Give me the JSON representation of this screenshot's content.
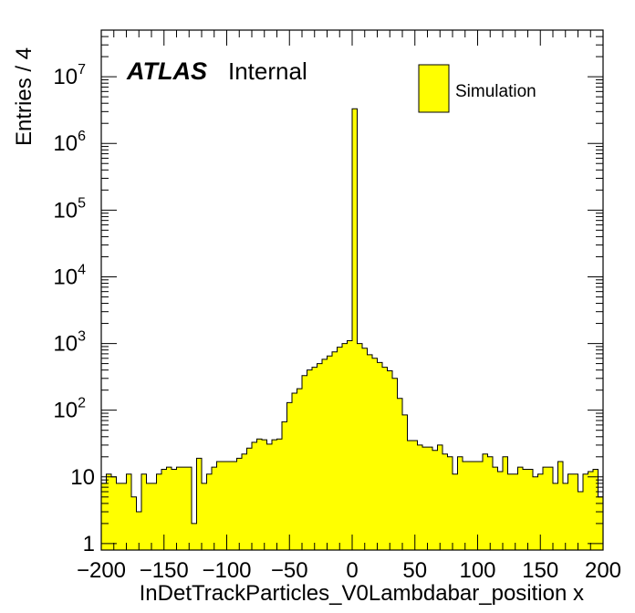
{
  "chart_data": {
    "type": "bar",
    "histogram": true,
    "log_y": true,
    "grid": false,
    "xlabel": "InDetTrackParticles_V0Lambdabar_position x",
    "ylabel": "Entries / 4",
    "xlim": [
      -200,
      200
    ],
    "ylim": [
      0.8,
      50000000
    ],
    "bin_width": 4,
    "x_ticks": [
      "−200",
      "−150",
      "−100",
      "−50",
      "0",
      "50",
      "100",
      "150",
      "200"
    ],
    "y_ticks": [
      {
        "base": "1",
        "exp": ""
      },
      {
        "base": "10",
        "exp": ""
      },
      {
        "base": "10",
        "exp": "2"
      },
      {
        "base": "10",
        "exp": "3"
      },
      {
        "base": "10",
        "exp": "4"
      },
      {
        "base": "10",
        "exp": "5"
      },
      {
        "base": "10",
        "exp": "6"
      },
      {
        "base": "10",
        "exp": "7"
      }
    ],
    "atlas_label": "ATLAS",
    "atlas_sublabel": "Internal",
    "legend_position": "top-right",
    "series": [
      {
        "name": "Simulation",
        "color": "#ffff00",
        "edge_color": "#000000",
        "values": [
          8,
          11,
          10,
          8,
          8,
          11,
          5,
          3,
          11,
          8,
          8,
          11,
          13,
          14,
          13,
          14,
          14,
          14,
          2,
          19,
          8,
          11,
          14,
          17,
          17,
          17,
          17,
          19,
          22,
          27,
          33,
          37,
          36,
          31,
          36,
          37,
          67,
          130,
          180,
          210,
          330,
          400,
          440,
          500,
          580,
          650,
          750,
          880,
          1000,
          1100,
          3300000,
          1000,
          850,
          680,
          600,
          520,
          440,
          390,
          300,
          150,
          85,
          35,
          35,
          30,
          28,
          28,
          25,
          30,
          22,
          20,
          11,
          20,
          17,
          17,
          17,
          17,
          22,
          20,
          14,
          12,
          20,
          11,
          11,
          14,
          13,
          13,
          10,
          11,
          14,
          14,
          8,
          17,
          8,
          11,
          11,
          6,
          11,
          12,
          13,
          5,
          13
        ]
      }
    ]
  }
}
